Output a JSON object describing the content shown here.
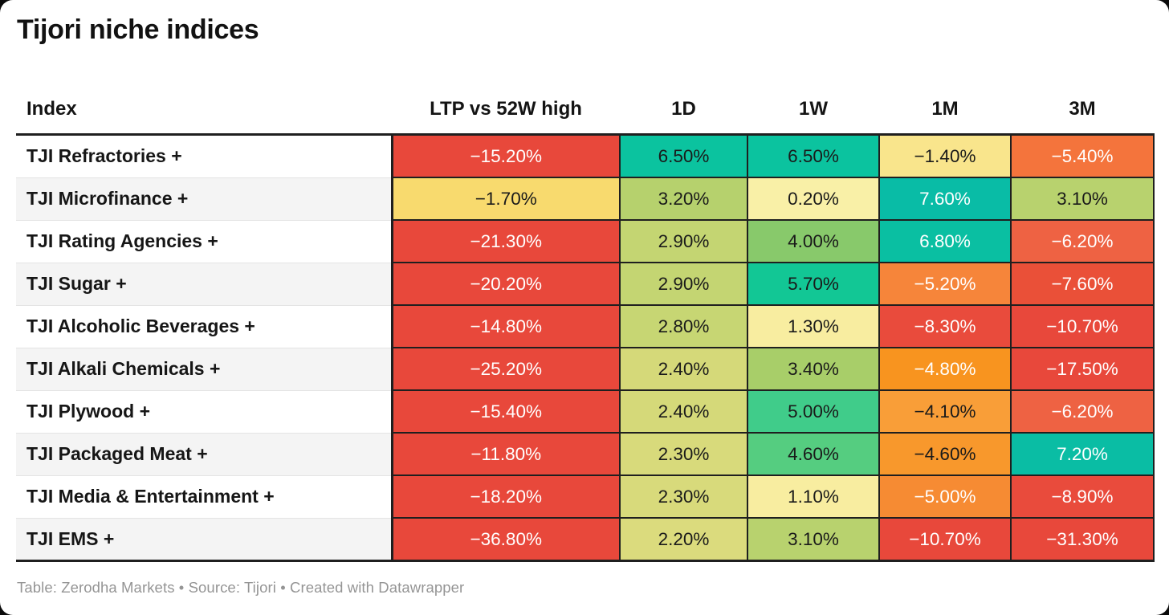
{
  "title": "Tijori niche indices",
  "footer": "Table: Zerodha Markets • Source: Tijori • Created with Datawrapper",
  "accent_colors": {
    "strong_negative_red": "#e8483b",
    "orange_red": "#ee6243",
    "orange": "#f8941f",
    "light_orange": "#f99e38",
    "gold": "#f8da6e",
    "pale_yellow": "#f9f0a7",
    "yellow_green": "#c4d572",
    "green": "#88c96b",
    "emerald": "#40cc8a",
    "teal": "#0bc39f",
    "deep_teal": "#09bca6",
    "grid_line": "#1f1f1f"
  },
  "table": {
    "columns": [
      "Index",
      "LTP vs 52W high",
      "1D",
      "1W",
      "1M",
      "3M"
    ],
    "rows": [
      {
        "label": "TJI Refractories +",
        "cells": [
          {
            "value": "−15.20%",
            "bg": "#e8483b",
            "fg": "#ffffff"
          },
          {
            "value": "6.50%",
            "bg": "#0bc39f",
            "fg": "#1a1a1a"
          },
          {
            "value": "6.50%",
            "bg": "#0bc39f",
            "fg": "#1a1a1a"
          },
          {
            "value": "−1.40%",
            "bg": "#f9e58c",
            "fg": "#1a1a1a"
          },
          {
            "value": "−5.40%",
            "bg": "#f4743c",
            "fg": "#ffffff"
          }
        ]
      },
      {
        "label": "TJI Microfinance +",
        "cells": [
          {
            "value": "−1.70%",
            "bg": "#f8da6e",
            "fg": "#1a1a1a"
          },
          {
            "value": "3.20%",
            "bg": "#b6d16d",
            "fg": "#1a1a1a"
          },
          {
            "value": "0.20%",
            "bg": "#f9f0a7",
            "fg": "#1a1a1a"
          },
          {
            "value": "7.60%",
            "bg": "#09bca6",
            "fg": "#ffffff"
          },
          {
            "value": "3.10%",
            "bg": "#b8d26e",
            "fg": "#1a1a1a"
          }
        ]
      },
      {
        "label": "TJI Rating Agencies +",
        "cells": [
          {
            "value": "−21.30%",
            "bg": "#e8483b",
            "fg": "#ffffff"
          },
          {
            "value": "2.90%",
            "bg": "#c4d572",
            "fg": "#1a1a1a"
          },
          {
            "value": "4.00%",
            "bg": "#88c96b",
            "fg": "#1a1a1a"
          },
          {
            "value": "6.80%",
            "bg": "#0abfa2",
            "fg": "#ffffff"
          },
          {
            "value": "−6.20%",
            "bg": "#ee6243",
            "fg": "#ffffff"
          }
        ]
      },
      {
        "label": "TJI Sugar +",
        "cells": [
          {
            "value": "−20.20%",
            "bg": "#e8483b",
            "fg": "#ffffff"
          },
          {
            "value": "2.90%",
            "bg": "#c4d572",
            "fg": "#1a1a1a"
          },
          {
            "value": "5.70%",
            "bg": "#12c795",
            "fg": "#1a1a1a"
          },
          {
            "value": "−5.20%",
            "bg": "#f6853a",
            "fg": "#ffffff"
          },
          {
            "value": "−7.60%",
            "bg": "#ea5038",
            "fg": "#ffffff"
          }
        ]
      },
      {
        "label": "TJI Alcoholic Beverages +",
        "cells": [
          {
            "value": "−14.80%",
            "bg": "#e8483b",
            "fg": "#ffffff"
          },
          {
            "value": "2.80%",
            "bg": "#c7d673",
            "fg": "#1a1a1a"
          },
          {
            "value": "1.30%",
            "bg": "#f8eda0",
            "fg": "#1a1a1a"
          },
          {
            "value": "−8.30%",
            "bg": "#e94b3c",
            "fg": "#ffffff"
          },
          {
            "value": "−10.70%",
            "bg": "#e8483b",
            "fg": "#ffffff"
          }
        ]
      },
      {
        "label": "TJI Alkali Chemicals +",
        "cells": [
          {
            "value": "−25.20%",
            "bg": "#e8483b",
            "fg": "#ffffff"
          },
          {
            "value": "2.40%",
            "bg": "#d5d979",
            "fg": "#1a1a1a"
          },
          {
            "value": "3.40%",
            "bg": "#a8ce69",
            "fg": "#1a1a1a"
          },
          {
            "value": "−4.80%",
            "bg": "#f8941f",
            "fg": "#ffffff"
          },
          {
            "value": "−17.50%",
            "bg": "#e8483b",
            "fg": "#ffffff"
          }
        ]
      },
      {
        "label": "TJI Plywood +",
        "cells": [
          {
            "value": "−15.40%",
            "bg": "#e8483b",
            "fg": "#ffffff"
          },
          {
            "value": "2.40%",
            "bg": "#d5d979",
            "fg": "#1a1a1a"
          },
          {
            "value": "5.00%",
            "bg": "#40cc8a",
            "fg": "#1a1a1a"
          },
          {
            "value": "−4.10%",
            "bg": "#f99e38",
            "fg": "#1a1a1a"
          },
          {
            "value": "−6.20%",
            "bg": "#ee6243",
            "fg": "#ffffff"
          }
        ]
      },
      {
        "label": "TJI Packaged Meat +",
        "cells": [
          {
            "value": "−11.80%",
            "bg": "#e8483b",
            "fg": "#ffffff"
          },
          {
            "value": "2.30%",
            "bg": "#d8da7b",
            "fg": "#1a1a1a"
          },
          {
            "value": "4.60%",
            "bg": "#55cd80",
            "fg": "#1a1a1a"
          },
          {
            "value": "−4.60%",
            "bg": "#f8982c",
            "fg": "#1a1a1a"
          },
          {
            "value": "7.20%",
            "bg": "#0abda4",
            "fg": "#ffffff"
          }
        ]
      },
      {
        "label": "TJI Media & Entertainment +",
        "cells": [
          {
            "value": "−18.20%",
            "bg": "#e8483b",
            "fg": "#ffffff"
          },
          {
            "value": "2.30%",
            "bg": "#d8da7b",
            "fg": "#1a1a1a"
          },
          {
            "value": "1.10%",
            "bg": "#f8eda0",
            "fg": "#1a1a1a"
          },
          {
            "value": "−5.00%",
            "bg": "#f68b33",
            "fg": "#ffffff"
          },
          {
            "value": "−8.90%",
            "bg": "#e94b3c",
            "fg": "#ffffff"
          }
        ]
      },
      {
        "label": "TJI EMS +",
        "cells": [
          {
            "value": "−36.80%",
            "bg": "#e8483b",
            "fg": "#ffffff"
          },
          {
            "value": "2.20%",
            "bg": "#dbdb7d",
            "fg": "#1a1a1a"
          },
          {
            "value": "3.10%",
            "bg": "#b8d26e",
            "fg": "#1a1a1a"
          },
          {
            "value": "−10.70%",
            "bg": "#e8483b",
            "fg": "#ffffff"
          },
          {
            "value": "−31.30%",
            "bg": "#e8483b",
            "fg": "#ffffff"
          }
        ]
      }
    ]
  },
  "chart_data": {
    "type": "table",
    "title": "Tijori niche indices",
    "columns": [
      "Index",
      "LTP vs 52W high",
      "1D",
      "1W",
      "1M",
      "3M"
    ],
    "units": "%",
    "color_scale": "diverging: red (negative) → yellow (≈0) → teal (positive)",
    "rows": [
      [
        "TJI Refractories +",
        -15.2,
        6.5,
        6.5,
        -1.4,
        -5.4
      ],
      [
        "TJI Microfinance +",
        -1.7,
        3.2,
        0.2,
        7.6,
        3.1
      ],
      [
        "TJI Rating Agencies +",
        -21.3,
        2.9,
        4.0,
        6.8,
        -6.2
      ],
      [
        "TJI Sugar +",
        -20.2,
        2.9,
        5.7,
        -5.2,
        -7.6
      ],
      [
        "TJI Alcoholic Beverages +",
        -14.8,
        2.8,
        1.3,
        -8.3,
        -10.7
      ],
      [
        "TJI Alkali Chemicals +",
        -25.2,
        2.4,
        3.4,
        -4.8,
        -17.5
      ],
      [
        "TJI Plywood +",
        -15.4,
        2.4,
        5.0,
        -4.1,
        -6.2
      ],
      [
        "TJI Packaged Meat +",
        -11.8,
        2.3,
        4.6,
        -4.6,
        7.2
      ],
      [
        "TJI Media & Entertainment +",
        -18.2,
        2.3,
        1.1,
        -5.0,
        -8.9
      ],
      [
        "TJI EMS +",
        -36.8,
        2.2,
        3.1,
        -10.7,
        -31.3
      ]
    ]
  }
}
